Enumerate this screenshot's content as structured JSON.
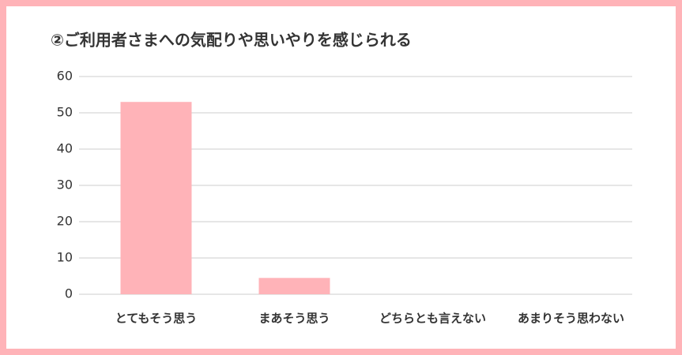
{
  "chart_data": {
    "type": "bar",
    "title": "②ご利用者さまへの気配りや思いやりを感じられる",
    "categories": [
      "とてもそう思う",
      "まあそう思う",
      "どちらとも言えない",
      "あまりそう思わない"
    ],
    "values": [
      53,
      4.5,
      0,
      0
    ],
    "color": "#ffb3b8",
    "ylim": [
      0,
      60
    ],
    "yticks": [
      0,
      10,
      20,
      30,
      40,
      50,
      60
    ],
    "grid": true
  }
}
